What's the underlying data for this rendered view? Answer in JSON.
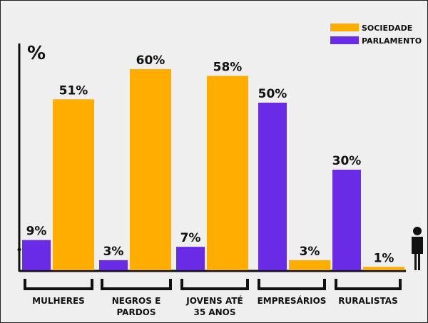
{
  "chart_data": {
    "type": "bar",
    "title": "",
    "ylabel": "%",
    "xlabel": "",
    "ylim": [
      0,
      62
    ],
    "categories": [
      "MULHERES",
      "NEGROS E PARDOS",
      "JOVENS ATÉ 35 ANOS",
      "EMPRESÁRIOS",
      "RURALISTAS"
    ],
    "category_lines": [
      [
        "MULHERES"
      ],
      [
        "NEGROS E",
        "PARDOS"
      ],
      [
        "JOVENS ATÉ",
        "35 ANOS"
      ],
      [
        "EMPRESÁRIOS"
      ],
      [
        "RURALISTAS"
      ]
    ],
    "series": [
      {
        "name": "PARLAMENTO",
        "color": "#6a2be6",
        "values": [
          9,
          3,
          7,
          50,
          30
        ],
        "labels": [
          "9%",
          "3%",
          "7%",
          "50%",
          "30%"
        ]
      },
      {
        "name": "SOCIEDADE",
        "color": "#ffad00",
        "values": [
          51,
          60,
          58,
          3,
          1
        ],
        "labels": [
          "51%",
          "60%",
          "58%",
          "3%",
          "1%"
        ]
      }
    ],
    "legend_position": "top-right",
    "grid": false
  },
  "colors": {
    "axis": "#111111",
    "text": "#111111",
    "background": "#efefef"
  },
  "icons": {
    "person": "person-icon"
  }
}
